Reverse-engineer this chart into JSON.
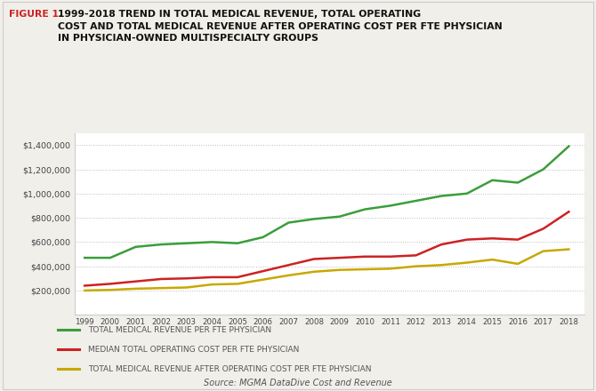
{
  "years": [
    1999,
    2000,
    2001,
    2002,
    2003,
    2004,
    2005,
    2006,
    2007,
    2008,
    2009,
    2010,
    2011,
    2012,
    2013,
    2014,
    2015,
    2016,
    2017,
    2018
  ],
  "total_medical_revenue": [
    470000,
    470000,
    560000,
    580000,
    590000,
    600000,
    590000,
    640000,
    760000,
    790000,
    810000,
    870000,
    900000,
    940000,
    980000,
    1000000,
    1110000,
    1090000,
    1200000,
    1390000
  ],
  "median_operating_cost": [
    240000,
    255000,
    275000,
    295000,
    300000,
    310000,
    310000,
    360000,
    410000,
    460000,
    470000,
    480000,
    480000,
    490000,
    580000,
    620000,
    630000,
    620000,
    710000,
    850000
  ],
  "revenue_after_cost": [
    200000,
    205000,
    215000,
    220000,
    225000,
    250000,
    255000,
    290000,
    325000,
    355000,
    370000,
    375000,
    380000,
    400000,
    410000,
    430000,
    455000,
    420000,
    525000,
    540000
  ],
  "colors": {
    "revenue": "#3a9e3a",
    "cost": "#cc2222",
    "after_cost": "#c8a800"
  },
  "ylim": [
    0,
    1500000
  ],
  "yticks": [
    200000,
    400000,
    600000,
    800000,
    1000000,
    1200000,
    1400000
  ],
  "figure_label": "FIGURE 1.",
  "title_rest": "1999-2018 TREND IN TOTAL MEDICAL REVENUE, TOTAL OPERATING\nCOST AND TOTAL MEDICAL REVENUE AFTER OPERATING COST PER FTE PHYSICIAN\nIN PHYSICIAN-OWNED MULTISPECIALTY GROUPS",
  "legend": [
    "TOTAL MEDICAL REVENUE PER FTE PHYSICIAN",
    "MEDIAN TOTAL OPERATING COST PER FTE PHYSICIAN",
    "TOTAL MEDICAL REVENUE AFTER OPERATING COST PER FTE PHYSICIAN"
  ],
  "source": "Source: MGMA DataDive Cost and Revenue",
  "bg_color": "#f0efea",
  "chart_bg": "#ffffff",
  "legend_bg": "#e8e8e2"
}
